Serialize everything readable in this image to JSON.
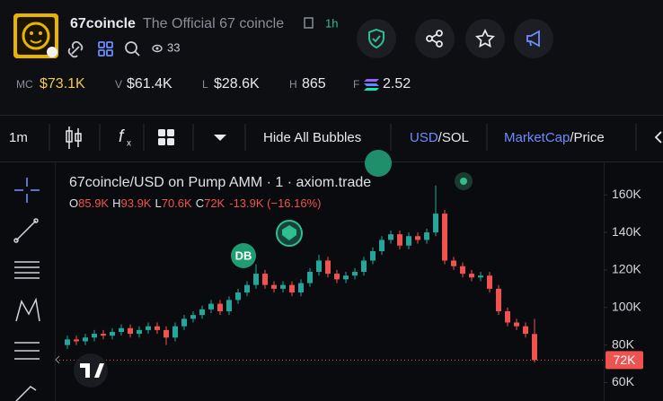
{
  "header": {
    "name": "67coincle",
    "description": "The Official 67 coincle",
    "age": "1h",
    "watchers": "33"
  },
  "stats": [
    {
      "label": "MC",
      "value": "$73.1K"
    },
    {
      "label": "V",
      "value": "$61.4K"
    },
    {
      "label": "L",
      "value": "$28.6K"
    },
    {
      "label": "H",
      "value": "865"
    },
    {
      "label": "F",
      "value": "2.52"
    }
  ],
  "toolbar": {
    "interval": "1m",
    "bubbles": "Hide All Bubbles",
    "currency_active": "USD",
    "currency_other": "/SOL",
    "mode_active": "MarketCap",
    "mode_other": "/Price"
  },
  "legend": {
    "title": "67coincle/USD on Pump AMM · 1 · axiom.trade",
    "open_label": "O",
    "open": "85.9K",
    "high_label": "H",
    "high": "93.9K",
    "low_label": "L",
    "low": "70.6K",
    "close_label": "C",
    "close": "72K",
    "change": "-13.9K (−16.16%)"
  },
  "bubble_label": "DB",
  "chart_data": {
    "type": "candlestick",
    "open": [
      80,
      83,
      82,
      84,
      86,
      85,
      87,
      89,
      86,
      88,
      90,
      88,
      84,
      90,
      94,
      96,
      99,
      102,
      98,
      104,
      108,
      112,
      118,
      112,
      110,
      112,
      108,
      113,
      119,
      125,
      118,
      115,
      117,
      119,
      125,
      130,
      136,
      139,
      133,
      138,
      136,
      140,
      150,
      125,
      122,
      118,
      116,
      117,
      110,
      98,
      92,
      90,
      85.9
    ],
    "high": [
      85,
      85,
      86,
      88,
      88,
      89,
      91,
      91,
      90,
      92,
      92,
      90,
      92,
      96,
      98,
      101,
      104,
      104,
      106,
      110,
      114,
      123,
      120,
      114,
      114,
      114,
      115,
      121,
      128,
      127,
      120,
      119,
      121,
      127,
      132,
      138,
      141,
      141,
      140,
      140,
      142,
      165,
      152,
      127,
      124,
      120,
      119,
      119,
      112,
      100,
      94,
      92,
      93.9
    ],
    "low": [
      78,
      80,
      80,
      82,
      83,
      83,
      85,
      84,
      84,
      86,
      86,
      80,
      82,
      88,
      92,
      94,
      97,
      96,
      96,
      102,
      106,
      110,
      110,
      108,
      108,
      106,
      106,
      111,
      117,
      116,
      113,
      113,
      115,
      117,
      123,
      128,
      134,
      131,
      131,
      134,
      134,
      138,
      123,
      120,
      116,
      114,
      114,
      108,
      96,
      90,
      88,
      84,
      70.6
    ],
    "close": [
      83,
      82,
      84,
      86,
      85,
      87,
      89,
      86,
      88,
      90,
      88,
      84,
      90,
      94,
      96,
      99,
      102,
      98,
      104,
      108,
      112,
      118,
      112,
      110,
      112,
      108,
      113,
      119,
      125,
      118,
      115,
      117,
      119,
      125,
      130,
      136,
      139,
      133,
      138,
      136,
      140,
      150,
      125,
      122,
      118,
      116,
      117,
      110,
      98,
      92,
      90,
      86,
      72
    ],
    "ylim": [
      50.2,
      177.3
    ],
    "yticks": [
      {
        "value": 60,
        "label": "60K"
      },
      {
        "value": 80,
        "label": "80K"
      },
      {
        "value": 100,
        "label": "100K"
      },
      {
        "value": 120,
        "label": "120K"
      },
      {
        "value": 140,
        "label": "140K"
      },
      {
        "value": 160,
        "label": "160K"
      }
    ],
    "last_price": {
      "value": 72,
      "label": "72K"
    },
    "up_color": "#26a69a",
    "down_color": "#ef5350"
  }
}
